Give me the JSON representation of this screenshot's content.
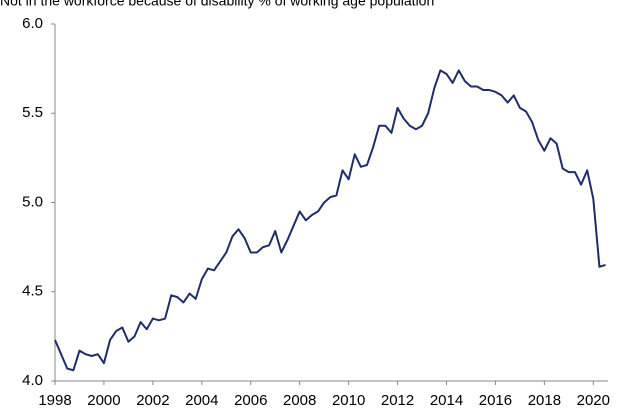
{
  "chart_data": {
    "type": "line",
    "title": "Not in the workforce because of disability % of working age population",
    "x": [
      1998,
      1998.25,
      1998.5,
      1998.75,
      1999,
      1999.25,
      1999.5,
      1999.75,
      2000,
      2000.25,
      2000.5,
      2000.75,
      2001,
      2001.25,
      2001.5,
      2001.75,
      2002,
      2002.25,
      2002.5,
      2002.75,
      2003,
      2003.25,
      2003.5,
      2003.75,
      2004,
      2004.25,
      2004.5,
      2004.75,
      2005,
      2005.25,
      2005.5,
      2005.75,
      2006,
      2006.25,
      2006.5,
      2006.75,
      2007,
      2007.25,
      2007.5,
      2007.75,
      2008,
      2008.25,
      2008.5,
      2008.75,
      2009,
      2009.25,
      2009.5,
      2009.75,
      2010,
      2010.25,
      2010.5,
      2010.75,
      2011,
      2011.25,
      2011.5,
      2011.75,
      2012,
      2012.25,
      2012.5,
      2012.75,
      2013,
      2013.25,
      2013.5,
      2013.75,
      2014,
      2014.25,
      2014.5,
      2014.75,
      2015,
      2015.25,
      2015.5,
      2015.75,
      2016,
      2016.25,
      2016.5,
      2016.75,
      2017,
      2017.25,
      2017.5,
      2017.75,
      2018,
      2018.25,
      2018.5,
      2018.75,
      2019,
      2019.25,
      2019.5,
      2019.75,
      2020,
      2020.25,
      2020.5
    ],
    "series": [
      {
        "color": "#1f2d6b",
        "values": [
          4.23,
          4.15,
          4.07,
          4.06,
          4.17,
          4.15,
          4.14,
          4.15,
          4.1,
          4.23,
          4.28,
          4.3,
          4.22,
          4.25,
          4.33,
          4.29,
          4.35,
          4.34,
          4.35,
          4.48,
          4.47,
          4.44,
          4.49,
          4.46,
          4.57,
          4.63,
          4.62,
          4.67,
          4.72,
          4.81,
          4.85,
          4.8,
          4.72,
          4.72,
          4.75,
          4.76,
          4.84,
          4.72,
          4.79,
          4.87,
          4.95,
          4.9,
          4.93,
          4.95,
          5.0,
          5.03,
          5.04,
          5.18,
          5.13,
          5.27,
          5.2,
          5.21,
          5.31,
          5.43,
          5.43,
          5.39,
          5.53,
          5.47,
          5.43,
          5.41,
          5.43,
          5.5,
          5.64,
          5.74,
          5.72,
          5.67,
          5.74,
          5.68,
          5.65,
          5.65,
          5.63,
          5.63,
          5.62,
          5.6,
          5.56,
          5.6,
          5.53,
          5.51,
          5.45,
          5.35,
          5.29,
          5.36,
          5.33,
          5.19,
          5.17,
          5.17,
          5.1,
          5.18,
          5.02,
          4.64,
          4.65
        ]
      }
    ],
    "xlim": [
      1998,
      2020.6
    ],
    "xticks": [
      1998,
      2000,
      2002,
      2004,
      2006,
      2008,
      2010,
      2012,
      2014,
      2016,
      2018,
      2020
    ],
    "ylim": [
      4,
      6
    ],
    "yticks": [
      {
        "value": 4,
        "label": "4.0"
      },
      4.5,
      {
        "value": 5,
        "label": "5.0"
      },
      5.5,
      {
        "value": 6,
        "label": "6.0"
      }
    ],
    "grid": false
  }
}
